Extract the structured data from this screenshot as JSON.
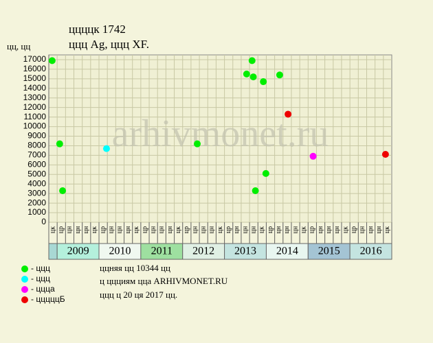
{
  "chart_data": {
    "type": "scatter",
    "title": "ццццк 1742",
    "subtitle": "ццц Ag, ццц XF.",
    "y_label": "цц, цц",
    "watermark": "arhivmonet.ru",
    "xlim": [
      2008.69,
      2016.89
    ],
    "ylim": [
      0,
      17500
    ],
    "yticks": [
      0,
      1000,
      2000,
      3000,
      4000,
      5000,
      6000,
      7000,
      8000,
      9000,
      10000,
      11000,
      12000,
      13000,
      14000,
      15000,
      16000,
      17000
    ],
    "grid": true,
    "groups": [
      {
        "year": null,
        "color": "#a8d8d4",
        "months": [
          "цк"
        ]
      },
      {
        "year": "2009",
        "color": "#b4f0dc",
        "months": [
          "цр",
          "цн",
          "цн",
          "цн",
          "цк"
        ]
      },
      {
        "year": "2010",
        "color": "#f0f8f0",
        "months": [
          "цр",
          "цн",
          "цн",
          "цн",
          "цк"
        ]
      },
      {
        "year": "2011",
        "color": "#9ee0a0",
        "months": [
          "цр",
          "цн",
          "цн",
          "цн",
          "цк"
        ]
      },
      {
        "year": "2012",
        "color": "#e0f0e4",
        "months": [
          "цр",
          "цн",
          "цн",
          "цн",
          "цк"
        ]
      },
      {
        "year": "2013",
        "color": "#c4e4e0",
        "months": [
          "цр",
          "цн",
          "цн",
          "цн",
          "цк"
        ]
      },
      {
        "year": "2014",
        "color": "#e8f6f0",
        "months": [
          "цр",
          "цн",
          "цн",
          "цн",
          "цк"
        ]
      },
      {
        "year": "2015",
        "color": "#a4c4d4",
        "months": [
          "цр",
          "цн",
          "цн",
          "цн",
          "цк"
        ]
      },
      {
        "year": "2016",
        "color": "#c4e4e0",
        "months": [
          "цр",
          "цн",
          "цн",
          "цн",
          "цк"
        ]
      }
    ],
    "series": [
      {
        "name": "- ццц",
        "color": "#00ee00",
        "x": [
          2008.77,
          2008.95,
          2009.02,
          2012.24,
          2013.42,
          2013.55,
          2013.58,
          2013.63,
          2013.82,
          2013.88,
          2014.21
        ],
        "values": [
          16900,
          8200,
          3300,
          8200,
          15500,
          16900,
          15200,
          3300,
          14700,
          5100,
          15400
        ]
      },
      {
        "name": "- ццц",
        "color": "#00ffff",
        "x": [
          2010.07
        ],
        "values": [
          7700
        ]
      },
      {
        "name": "- ццца",
        "color": "#ff00ff",
        "x": [
          2015.01
        ],
        "values": [
          6900
        ]
      },
      {
        "name": "- цццццБ",
        "color": "#ee0000",
        "x": [
          2014.41,
          2016.74
        ],
        "values": [
          11300,
          7100
        ]
      }
    ],
    "notes": [
      "ццняя цц 10344 цц",
      "ц ццциям цца ARHIVMONET.RU",
      "ццц ц 20 ця 2017 цц."
    ]
  }
}
